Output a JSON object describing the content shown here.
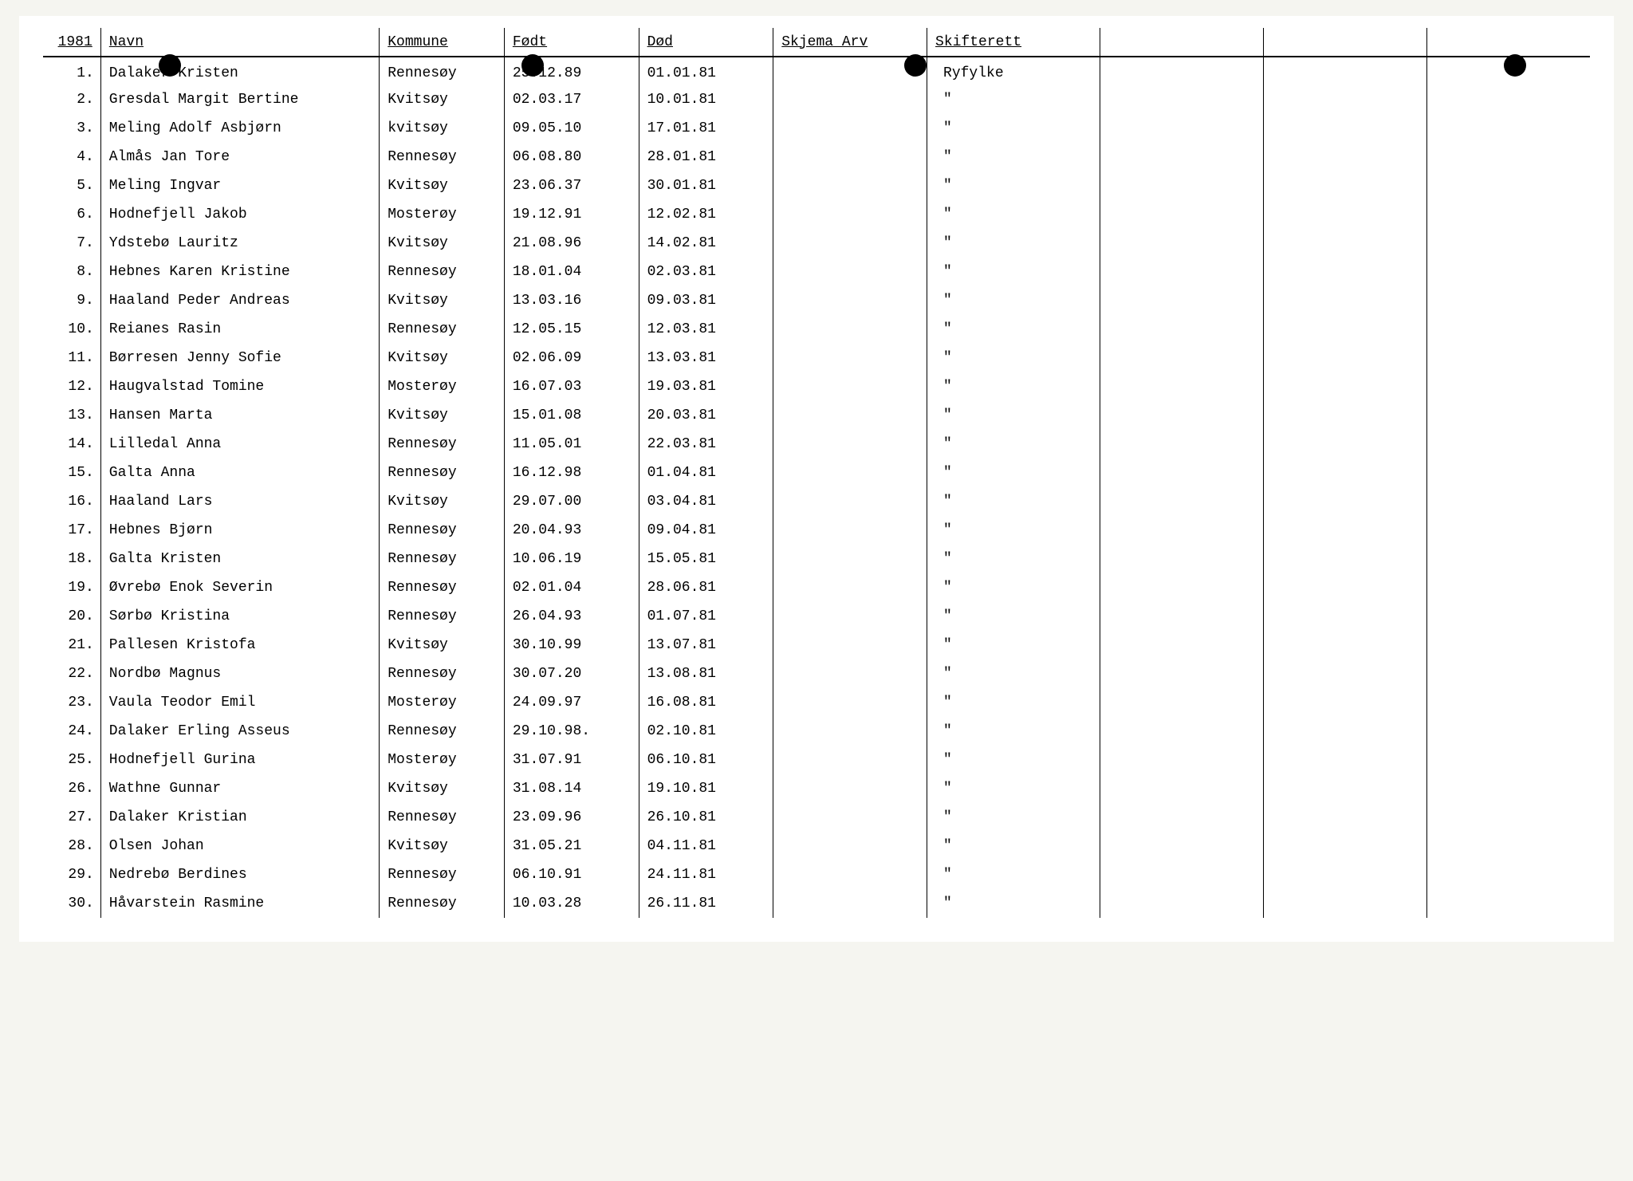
{
  "header": {
    "year": "1981",
    "navn": "Navn",
    "kommune": "Kommune",
    "fodt": "Født",
    "dod": "Død",
    "skjema_arv": "Skjema Arv",
    "skifterett": "Skifterett"
  },
  "rows": [
    {
      "num": "1.",
      "navn": "Dalaker Kristen",
      "kommune": "Rennesøy",
      "fodt": "25.12.89",
      "dod": "01.01.81",
      "skifterett": "Ryfylke"
    },
    {
      "num": "2.",
      "navn": "Gresdal Margit Bertine",
      "kommune": "Kvitsøy",
      "fodt": "02.03.17",
      "dod": "10.01.81",
      "skifterett": "\""
    },
    {
      "num": "3.",
      "navn": "Meling Adolf Asbjørn",
      "kommune": "kvitsøy",
      "fodt": "09.05.10",
      "dod": "17.01.81",
      "skifterett": "\""
    },
    {
      "num": "4.",
      "navn": "Almås Jan Tore",
      "kommune": "Rennesøy",
      "fodt": "06.08.80",
      "dod": "28.01.81",
      "skifterett": "\""
    },
    {
      "num": "5.",
      "navn": "Meling Ingvar",
      "kommune": "Kvitsøy",
      "fodt": "23.06.37",
      "dod": "30.01.81",
      "skifterett": "\""
    },
    {
      "num": "6.",
      "navn": "Hodnefjell Jakob",
      "kommune": "Mosterøy",
      "fodt": "19.12.91",
      "dod": "12.02.81",
      "skifterett": "\""
    },
    {
      "num": "7.",
      "navn": "Ydstebø Lauritz",
      "kommune": "Kvitsøy",
      "fodt": "21.08.96",
      "dod": "14.02.81",
      "skifterett": "\""
    },
    {
      "num": "8.",
      "navn": "Hebnes Karen Kristine",
      "kommune": "Rennesøy",
      "fodt": "18.01.04",
      "dod": "02.03.81",
      "skifterett": "\""
    },
    {
      "num": "9.",
      "navn": "Haaland Peder Andreas",
      "kommune": "Kvitsøy",
      "fodt": "13.03.16",
      "dod": "09.03.81",
      "skifterett": "\""
    },
    {
      "num": "10.",
      "navn": "Reianes Rasin",
      "kommune": "Rennesøy",
      "fodt": "12.05.15",
      "dod": "12.03.81",
      "skifterett": "\""
    },
    {
      "num": "11.",
      "navn": "Børresen Jenny Sofie",
      "kommune": "Kvitsøy",
      "fodt": "02.06.09",
      "dod": "13.03.81",
      "skifterett": "\""
    },
    {
      "num": "12.",
      "navn": "Haugvalstad Tomine",
      "kommune": "Mosterøy",
      "fodt": "16.07.03",
      "dod": "19.03.81",
      "skifterett": "\""
    },
    {
      "num": "13.",
      "navn": "Hansen Marta",
      "kommune": "Kvitsøy",
      "fodt": "15.01.08",
      "dod": "20.03.81",
      "skifterett": "\""
    },
    {
      "num": "14.",
      "navn": "Lilledal Anna",
      "kommune": "Rennesøy",
      "fodt": "11.05.01",
      "dod": "22.03.81",
      "skifterett": "\""
    },
    {
      "num": "15.",
      "navn": "Galta Anna",
      "kommune": "Rennesøy",
      "fodt": "16.12.98",
      "dod": "01.04.81",
      "skifterett": "\""
    },
    {
      "num": "16.",
      "navn": "Haaland Lars",
      "kommune": "Kvitsøy",
      "fodt": "29.07.00",
      "dod": "03.04.81",
      "skifterett": "\""
    },
    {
      "num": "17.",
      "navn": "Hebnes Bjørn",
      "kommune": "Rennesøy",
      "fodt": "20.04.93",
      "dod": "09.04.81",
      "skifterett": "\""
    },
    {
      "num": "18.",
      "navn": "Galta Kristen",
      "kommune": "Rennesøy",
      "fodt": "10.06.19",
      "dod": "15.05.81",
      "skifterett": "\""
    },
    {
      "num": "19.",
      "navn": "Øvrebø Enok Severin",
      "kommune": "Rennesøy",
      "fodt": "02.01.04",
      "dod": "28.06.81",
      "skifterett": "\""
    },
    {
      "num": "20.",
      "navn": "Sørbø Kristina",
      "kommune": "Rennesøy",
      "fodt": "26.04.93",
      "dod": "01.07.81",
      "skifterett": "\""
    },
    {
      "num": "21.",
      "navn": "Pallesen Kristofa",
      "kommune": "Kvitsøy",
      "fodt": "30.10.99",
      "dod": "13.07.81",
      "skifterett": "\""
    },
    {
      "num": "22.",
      "navn": "Nordbø Magnus",
      "kommune": "Rennesøy",
      "fodt": "30.07.20",
      "dod": "13.08.81",
      "skifterett": "\""
    },
    {
      "num": "23.",
      "navn": "Vaula Teodor Emil",
      "kommune": "Mosterøy",
      "fodt": "24.09.97",
      "dod": "16.08.81",
      "skifterett": "\""
    },
    {
      "num": "24.",
      "navn": "Dalaker Erling Asseus",
      "kommune": "Rennesøy",
      "fodt": "29.10.98.",
      "dod": "02.10.81",
      "skifterett": "\""
    },
    {
      "num": "25.",
      "navn": "Hodnefjell Gurina",
      "kommune": "Mosterøy",
      "fodt": "31.07.91",
      "dod": "06.10.81",
      "skifterett": "\""
    },
    {
      "num": "26.",
      "navn": "Wathne Gunnar",
      "kommune": "Kvitsøy",
      "fodt": "31.08.14",
      "dod": "19.10.81",
      "skifterett": "\""
    },
    {
      "num": "27.",
      "navn": "Dalaker Kristian",
      "kommune": "Rennesøy",
      "fodt": "23.09.96",
      "dod": "26.10.81",
      "skifterett": "\""
    },
    {
      "num": "28.",
      "navn": "Olsen Johan",
      "kommune": "Kvitsøy",
      "fodt": "31.05.21",
      "dod": "04.11.81",
      "skifterett": "\""
    },
    {
      "num": "29.",
      "navn": "Nedrebø Berdines",
      "kommune": "Rennesøy",
      "fodt": "06.10.91",
      "dod": "24.11.81",
      "skifterett": "\""
    },
    {
      "num": "30.",
      "navn": "Håvarstein Rasmine",
      "kommune": "Rennesøy",
      "fodt": "10.03.28",
      "dod": "26.11.81",
      "skifterett": "\""
    }
  ]
}
